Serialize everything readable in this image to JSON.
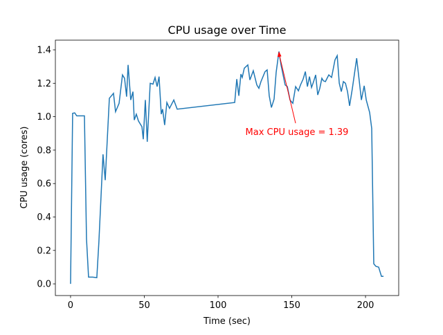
{
  "chart_data": {
    "type": "line",
    "title": "CPU usage over Time",
    "x_label": "Time (sec)",
    "y_label": "CPU usage (cores)",
    "x": [
      0,
      1.4,
      2.8,
      4.2,
      9.4,
      10.8,
      12.2,
      15,
      17.8,
      19.2,
      22,
      23.5,
      26.3,
      29.1,
      30.5,
      32.9,
      35.2,
      36.6,
      38,
      39,
      40.8,
      42.3,
      43.2,
      44.6,
      46,
      48.4,
      49.3,
      50.7,
      52,
      54,
      55.9,
      57.3,
      58.7,
      60,
      61.5,
      62.4,
      63.8,
      65.3,
      67.1,
      70,
      72.3,
      111.3,
      112.7,
      114.1,
      115.5,
      116.4,
      117.8,
      120.2,
      121.6,
      123.9,
      126.3,
      127.7,
      129.1,
      131.9,
      133.3,
      134.7,
      136.2,
      138,
      139.4,
      141.3,
      142.7,
      144.1,
      145.5,
      147,
      148.8,
      150.7,
      152.6,
      154.5,
      155.9,
      157.7,
      159.2,
      160.6,
      162,
      163.4,
      164.8,
      166.2,
      167.6,
      169,
      170.4,
      171.4,
      172.8,
      175.1,
      177,
      179.3,
      180.8,
      182.2,
      183.6,
      185,
      186.4,
      187.8,
      189.2,
      191.1,
      194,
      195.8,
      197.2,
      199.1,
      200.5,
      202.8,
      204.2,
      205.6,
      207,
      208.9,
      210.8,
      212.2
    ],
    "values": [
      0,
      1.02,
      1.023,
      1.005,
      1.005,
      0.27,
      0.04,
      0.04,
      0.037,
      0.25,
      0.775,
      0.62,
      1.11,
      1.14,
      1.03,
      1.08,
      1.25,
      1.23,
      1.12,
      1.31,
      1.1,
      1.15,
      0.98,
      1.015,
      0.975,
      0.94,
      0.865,
      1.1,
      0.85,
      1.2,
      1.195,
      1.235,
      1.18,
      1.24,
      1.015,
      1.045,
      0.95,
      1.085,
      1.05,
      1.1,
      1.045,
      1.085,
      1.225,
      1.125,
      1.255,
      1.235,
      1.29,
      1.31,
      1.22,
      1.275,
      1.19,
      1.17,
      1.21,
      1.27,
      1.28,
      1.125,
      1.055,
      1.105,
      1.265,
      1.39,
      1.31,
      1.25,
      1.19,
      1.18,
      1.1,
      1.08,
      1.18,
      1.155,
      1.19,
      1.225,
      1.27,
      1.18,
      1.24,
      1.175,
      1.21,
      1.25,
      1.13,
      1.17,
      1.23,
      1.215,
      1.21,
      1.25,
      1.235,
      1.34,
      1.365,
      1.2,
      1.15,
      1.21,
      1.2,
      1.15,
      1.065,
      1.17,
      1.35,
      1.21,
      1.1,
      1.185,
      1.1,
      1.025,
      0.93,
      0.12,
      0.105,
      0.1,
      0.045,
      0.045
    ],
    "color": "#1f77b4",
    "xlim": [
      -10.3,
      222.5
    ],
    "ylim": [
      -0.07,
      1.458
    ],
    "xticks": [
      0,
      50,
      100,
      150,
      200
    ],
    "yticks": [
      {
        "value": 0,
        "label": "0.0"
      },
      0.2,
      0.4,
      0.6,
      0.8,
      {
        "value": 1,
        "label": "1.0"
      },
      1.2,
      1.4
    ],
    "annotation": {
      "text": "Max CPU usage = 1.39",
      "color": "#ff0000"
    }
  }
}
